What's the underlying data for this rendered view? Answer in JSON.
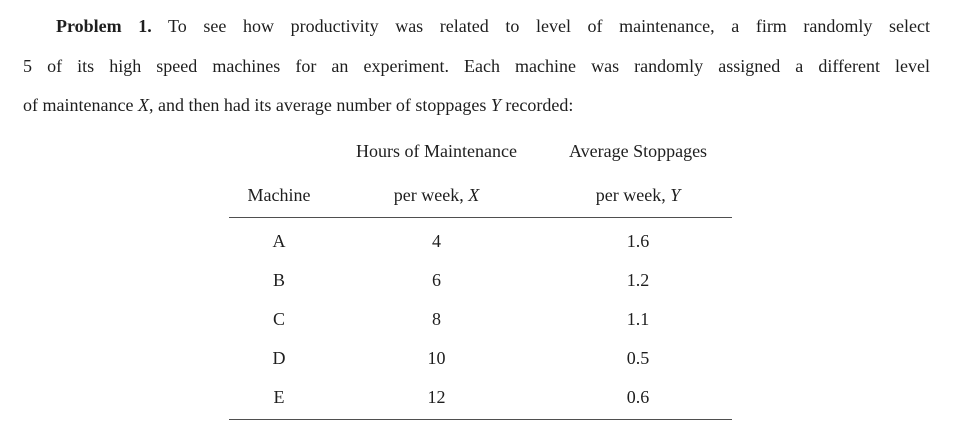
{
  "page": {
    "background": "#ffffff",
    "text_color": "#1e1e1e",
    "rule_color": "#4f4f4f"
  },
  "paragraph": {
    "problem_label": "Problem 1.",
    "line1_rest": " To see how productivity was related to level of maintenance, a firm randomly select",
    "line2": "5 of its high speed machines for an experiment. Each machine was randomly assigned a different level",
    "line3_before_x": "of maintenance ",
    "x_var": "X",
    "line3_between": ", and then had its average number of stoppages ",
    "y_var": "Y",
    "line3_after": " recorded:"
  },
  "table": {
    "columns": {
      "machine_header": "Machine",
      "x_header_line1": "Hours of Maintenance",
      "x_header_line2_prefix": "per week, ",
      "x_header_var": "X",
      "y_header_line1": "Average Stoppages",
      "y_header_line2_prefix": "per week, ",
      "y_header_var": "Y"
    },
    "rows": [
      {
        "machine": "A",
        "hours_per_week_x": "4",
        "avg_stoppages_y": "1.6"
      },
      {
        "machine": "B",
        "hours_per_week_x": "6",
        "avg_stoppages_y": "1.2"
      },
      {
        "machine": "C",
        "hours_per_week_x": "8",
        "avg_stoppages_y": "1.1"
      },
      {
        "machine": "D",
        "hours_per_week_x": "10",
        "avg_stoppages_y": "0.5"
      },
      {
        "machine": "E",
        "hours_per_week_x": "12",
        "avg_stoppages_y": "0.6"
      }
    ]
  }
}
